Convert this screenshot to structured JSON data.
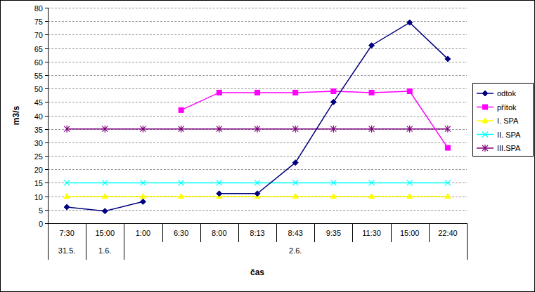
{
  "chart_data": {
    "type": "line",
    "x_label": "čas",
    "y_label": "m3/s",
    "categories": [
      "7:30",
      "15:00",
      "1:00",
      "6:30",
      "8:00",
      "8:13",
      "8:43",
      "9:35",
      "11:30",
      "15:00",
      "22:40"
    ],
    "category_groups": [
      "31.5.",
      "1.6.",
      "2.6.",
      null,
      null,
      null,
      null,
      null,
      null,
      null,
      null
    ],
    "ylim": [
      0,
      80
    ],
    "yticks": [
      0,
      5,
      10,
      15,
      20,
      25,
      30,
      35,
      40,
      45,
      50,
      55,
      60,
      65,
      70,
      75,
      80
    ],
    "grid": true,
    "legend": "right",
    "series": [
      {
        "name": "odtok",
        "color": "#000080",
        "marker": "diamond",
        "line_style": "solid",
        "values": [
          6,
          4.5,
          8,
          null,
          11,
          11,
          22.5,
          45,
          66,
          74.5,
          61
        ]
      },
      {
        "name": "přítok",
        "color": "#ff00ff",
        "marker": "square",
        "line_style": "solid",
        "values": [
          null,
          null,
          null,
          42,
          48.5,
          48.5,
          48.5,
          49,
          48.5,
          49,
          28
        ]
      },
      {
        "name": "I. SPA",
        "color": "#ffff00",
        "marker": "triangle",
        "line_style": "solid",
        "values": [
          10,
          10,
          10,
          10,
          10,
          10,
          10,
          10,
          10,
          10,
          10
        ]
      },
      {
        "name": "II. SPA",
        "color": "#00ffff",
        "marker": "x",
        "line_style": "solid",
        "values": [
          15,
          15,
          15,
          15,
          15,
          15,
          15,
          15,
          15,
          15,
          15
        ]
      },
      {
        "name": "III.SPA",
        "color": "#800080",
        "marker": "asterisk",
        "line_style": "solid",
        "values": [
          35,
          35,
          35,
          35,
          35,
          35,
          35,
          35,
          35,
          35,
          35
        ]
      }
    ]
  }
}
